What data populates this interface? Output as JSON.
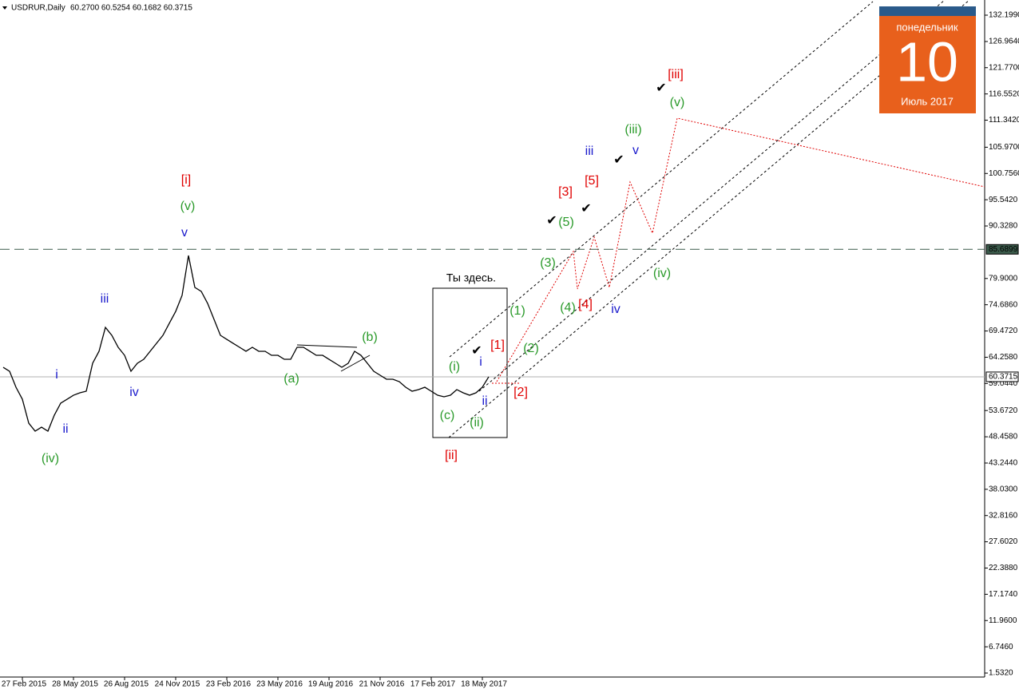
{
  "chart_data": {
    "type": "line",
    "title": "USDRUR,Daily",
    "subtitle": "60.2700 60.5254 60.1682 60.3715",
    "categories": [
      null,
      null,
      null,
      "27 Feb 2015",
      null,
      null,
      null,
      null,
      null,
      null,
      null,
      "28 May 2015",
      null,
      null,
      null,
      null,
      null,
      null,
      null,
      "26 Aug 2015",
      null,
      null,
      null,
      null,
      null,
      null,
      null,
      "24 Nov 2015",
      null,
      null,
      null,
      null,
      null,
      null,
      null,
      "23 Feb 2016",
      null,
      null,
      null,
      null,
      null,
      null,
      null,
      "23 May 2016",
      null,
      null,
      null,
      null,
      null,
      null,
      null,
      "19 Aug 2016",
      null,
      null,
      null,
      null,
      null,
      null,
      null,
      "21 Nov 2016",
      null,
      null,
      null,
      null,
      null,
      null,
      null,
      "17 Feb 2017",
      null,
      null,
      null,
      null,
      null,
      null,
      null,
      "18 May 2017",
      null
    ],
    "values": [
      62.26,
      61.47,
      58.3,
      55.92,
      51.16,
      49.58,
      50.37,
      49.58,
      52.75,
      55.13,
      55.92,
      56.71,
      57.19,
      57.51,
      63.06,
      65.44,
      70.19,
      68.61,
      66.23,
      64.64,
      61.47,
      63.06,
      63.85,
      65.44,
      67.02,
      68.61,
      70.99,
      73.36,
      76.54,
      84.46,
      78.12,
      77.33,
      74.95,
      71.78,
      68.61,
      67.81,
      67.02,
      66.23,
      65.44,
      66.23,
      65.44,
      65.44,
      64.64,
      64.64,
      63.85,
      63.85,
      66.23,
      66.23,
      65.44,
      64.64,
      64.64,
      63.85,
      63.06,
      62.26,
      63.06,
      65.44,
      64.64,
      63.06,
      61.47,
      60.68,
      59.89,
      59.89,
      59.41,
      58.3,
      57.51,
      57.83,
      58.3,
      57.51,
      56.71,
      56.4,
      56.71,
      57.83,
      57.19,
      56.71,
      57.19,
      58.3,
      60.37
    ],
    "color": "#000000",
    "ylim": [
      0.74,
      135.21
    ],
    "yticks": [
      {
        "value": 132.199,
        "label": "132.1990"
      },
      {
        "value": 126.964,
        "label": "126.9640"
      },
      {
        "value": 121.77,
        "label": "121.7700"
      },
      {
        "value": 116.552,
        "label": "116.5520"
      },
      {
        "value": 111.342,
        "label": "111.3420"
      },
      {
        "value": 105.97,
        "label": "105.9700"
      },
      {
        "value": 100.756,
        "label": "100.7560"
      },
      {
        "value": 95.542,
        "label": "95.5420"
      },
      {
        "value": 90.328,
        "label": "90.3280"
      },
      {
        "value": 79.9,
        "label": "79.9000"
      },
      {
        "value": 74.686,
        "label": "74.6860"
      },
      {
        "value": 69.472,
        "label": "69.4720"
      },
      {
        "value": 64.258,
        "label": "64.2580"
      },
      {
        "value": 59.044,
        "label": "59.0440"
      },
      {
        "value": 53.672,
        "label": "53.6720"
      },
      {
        "value": 48.458,
        "label": "48.4580"
      },
      {
        "value": 43.244,
        "label": "43.2440"
      },
      {
        "value": 38.03,
        "label": "38.0300"
      },
      {
        "value": 32.816,
        "label": "32.8160"
      },
      {
        "value": 27.602,
        "label": "27.6020"
      },
      {
        "value": 22.388,
        "label": "22.3880"
      },
      {
        "value": 17.174,
        "label": "17.1740"
      },
      {
        "value": 11.96,
        "label": "11.9600"
      },
      {
        "value": 6.746,
        "label": "6.7460"
      },
      {
        "value": 1.532,
        "label": "1.5320"
      }
    ],
    "levels": [
      {
        "value": 85.6899,
        "label": "85.6899"
      },
      {
        "value": 60.3715,
        "label": "60.3715"
      }
    ],
    "annotations": [
      {
        "text": "[i]",
        "color": "#e00000"
      },
      {
        "text": "(v)",
        "color": "#2a9a2a"
      },
      {
        "text": "v",
        "color": "#1a1acc"
      },
      {
        "text": "iii",
        "color": "#1a1acc"
      },
      {
        "text": "i",
        "color": "#1a1acc"
      },
      {
        "text": "iv",
        "color": "#1a1acc"
      },
      {
        "text": "ii",
        "color": "#1a1acc"
      },
      {
        "text": "(iv)",
        "color": "#2a9a2a"
      },
      {
        "text": "(a)",
        "color": "#2a9a2a"
      },
      {
        "text": "(b)",
        "color": "#2a9a2a"
      },
      {
        "text": "(c)",
        "color": "#2a9a2a"
      },
      {
        "text": "(i)",
        "color": "#2a9a2a"
      },
      {
        "text": "(ii)",
        "color": "#2a9a2a"
      },
      {
        "text": "i",
        "color": "#1a1acc"
      },
      {
        "text": "ii",
        "color": "#1a1acc"
      },
      {
        "text": "[ii]",
        "color": "#e00000"
      },
      {
        "text": "[1]",
        "color": "#e00000"
      },
      {
        "text": "[2]",
        "color": "#e00000"
      },
      {
        "text": "(1)",
        "color": "#2a9a2a"
      },
      {
        "text": "(2)",
        "color": "#2a9a2a"
      },
      {
        "text": "(3)",
        "color": "#2a9a2a"
      },
      {
        "text": "(4)",
        "color": "#2a9a2a"
      },
      {
        "text": "[4]",
        "color": "#e00000"
      },
      {
        "text": "(5)",
        "color": "#2a9a2a"
      },
      {
        "text": "[3]",
        "color": "#e00000"
      },
      {
        "text": "[5]",
        "color": "#e00000"
      },
      {
        "text": "iii",
        "color": "#1a1acc"
      },
      {
        "text": "iv",
        "color": "#1a1acc"
      },
      {
        "text": "v",
        "color": "#1a1acc"
      },
      {
        "text": "(iii)",
        "color": "#2a9a2a"
      },
      {
        "text": "(iv)",
        "color": "#2a9a2a"
      },
      {
        "text": "(v)",
        "color": "#2a9a2a"
      },
      {
        "text": "[iii]",
        "color": "#e00000"
      },
      {
        "text": "Ты здесь.",
        "color": "#000000"
      },
      {
        "text": "✔",
        "color": "#000000"
      },
      {
        "text": "✔",
        "color": "#000000"
      },
      {
        "text": "✔",
        "color": "#000000"
      },
      {
        "text": "✔",
        "color": "#000000"
      },
      {
        "text": "✔",
        "color": "#000000"
      }
    ],
    "calendar": {
      "weekday": "понедельник",
      "day": "10",
      "month": "Июль 2017"
    }
  }
}
